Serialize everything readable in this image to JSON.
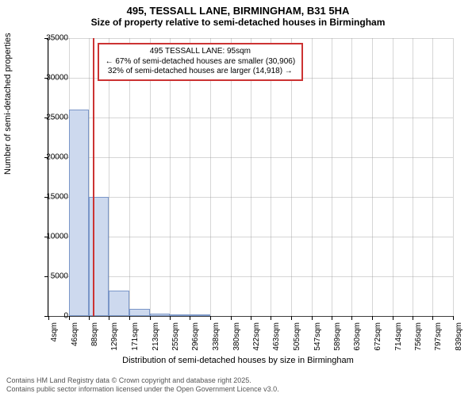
{
  "title": "495, TESSALL LANE, BIRMINGHAM, B31 5HA",
  "subtitle": "Size of property relative to semi-detached houses in Birmingham",
  "chart": {
    "type": "histogram",
    "ylabel": "Number of semi-detached properties",
    "xlabel": "Distribution of semi-detached houses by size in Birmingham",
    "ylim": [
      0,
      35000
    ],
    "ytick_step": 5000,
    "yticks": [
      0,
      5000,
      10000,
      15000,
      20000,
      25000,
      30000,
      35000
    ],
    "xticks": [
      "4sqm",
      "46sqm",
      "88sqm",
      "129sqm",
      "171sqm",
      "213sqm",
      "255sqm",
      "296sqm",
      "338sqm",
      "380sqm",
      "422sqm",
      "463sqm",
      "505sqm",
      "547sqm",
      "589sqm",
      "630sqm",
      "672sqm",
      "714sqm",
      "756sqm",
      "797sqm",
      "839sqm"
    ],
    "bars": [
      {
        "x": 46,
        "w": 42,
        "value": 26000
      },
      {
        "x": 88,
        "w": 41,
        "value": 15000
      },
      {
        "x": 129,
        "w": 42,
        "value": 3200
      },
      {
        "x": 171,
        "w": 42,
        "value": 900
      },
      {
        "x": 213,
        "w": 42,
        "value": 350
      },
      {
        "x": 255,
        "w": 41,
        "value": 180
      },
      {
        "x": 296,
        "w": 42,
        "value": 90
      }
    ],
    "x_range": [
      4,
      839
    ],
    "reference_line_x": 95,
    "bar_fill": "#cdd9ee",
    "bar_stroke": "#7a96c8",
    "ref_color": "#cc3333",
    "grid_color": "#999999",
    "background_color": "#ffffff",
    "title_fontsize": 13,
    "label_fontsize": 11,
    "tick_fontsize": 10
  },
  "annotation": {
    "line1": "495 TESSALL LANE: 95sqm",
    "line2": "← 67% of semi-detached houses are smaller (30,906)",
    "line3": "32% of semi-detached houses are larger (14,918) →"
  },
  "footer": {
    "line1": "Contains HM Land Registry data © Crown copyright and database right 2025.",
    "line2": "Contains public sector information licensed under the Open Government Licence v3.0."
  }
}
